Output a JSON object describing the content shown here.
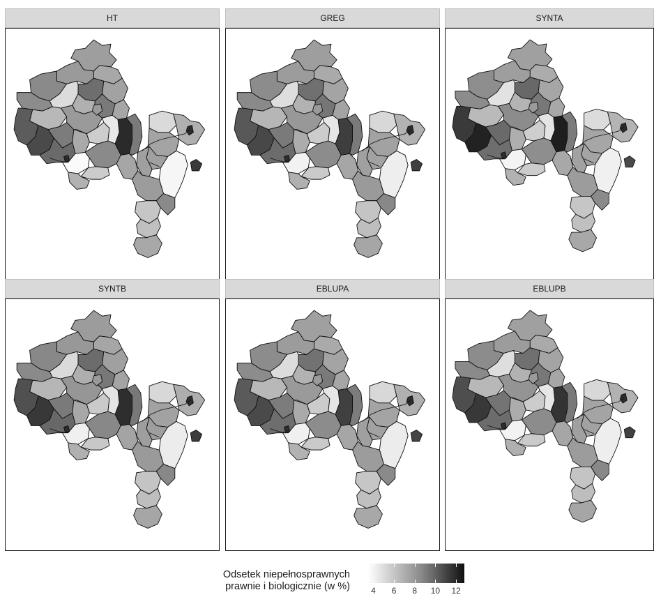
{
  "panels": [
    {
      "title": "HT",
      "shades": [
        "#9e9e9e",
        "#a8a8a8",
        "#9a9a9a",
        "#6e6e6e",
        "#8a8a8a",
        "#a2a2a2",
        "#dcdcdc",
        "#b0b0b0",
        "#7a7a7a",
        "#8c8c8c",
        "#a6a6a6",
        "#b8b8b8",
        "#5c5c5c",
        "#4a4a4a",
        "#7c7c7c",
        "#9a9a9a",
        "#cdcdcd",
        "#e8e8e8",
        "#aaaaaa",
        "#2a2a2a",
        "#7a7a7a",
        "#dadada",
        "#b0b0b0",
        "#a4a4a4",
        "#6a6a6a",
        "#fafafa",
        "#f6f6f6",
        "#a0a0a0",
        "#8a8a8a",
        "#a6a6a6",
        "#a0a0a0",
        "#cccccc",
        "#9c9c9c",
        "#b2b2b2",
        "#c6c6c6",
        "#8a8a8a",
        "#c0c0c0",
        "#a8a8a8",
        "#3a3a3a"
      ]
    },
    {
      "title": "GREG",
      "shades": [
        "#9e9e9e",
        "#aaaaaa",
        "#9c9c9c",
        "#707070",
        "#8c8c8c",
        "#a4a4a4",
        "#dedede",
        "#b2b2b2",
        "#767676",
        "#8a8a8a",
        "#a4a4a4",
        "#b6b6b6",
        "#585858",
        "#484848",
        "#7a7a7a",
        "#989898",
        "#cccccc",
        "#e6e6e6",
        "#acacac",
        "#3e3e3e",
        "#7a7a7a",
        "#d8d8d8",
        "#b2b2b2",
        "#a2a2a2",
        "#6c6c6c",
        "#f2f2f2",
        "#eeeeee",
        "#a2a2a2",
        "#8c8c8c",
        "#a6a6a6",
        "#a0a0a0",
        "#cacaca",
        "#9a9a9a",
        "#b0b0b0",
        "#c4c4c4",
        "#888888",
        "#bebebe",
        "#a6a6a6",
        "#404040"
      ]
    },
    {
      "title": "SYNTA",
      "shades": [
        "#a0a0a0",
        "#acacac",
        "#9e9e9e",
        "#686868",
        "#8e8e8e",
        "#a6a6a6",
        "#e2e2e2",
        "#b4b4b4",
        "#787878",
        "#8c8c8c",
        "#a8a8a8",
        "#bababa",
        "#3a3a3a",
        "#222222",
        "#6a6a6a",
        "#8c8c8c",
        "#cecece",
        "#e4e4e4",
        "#aeaeae",
        "#1e1e1e",
        "#7c7c7c",
        "#dcdcdc",
        "#b4b4b4",
        "#a6a6a6",
        "#6e6e6e",
        "#f4f4f4",
        "#f0f0f0",
        "#a4a4a4",
        "#8e8e8e",
        "#a8a8a8",
        "#a2a2a2",
        "#cccccc",
        "#9c9c9c",
        "#b2b2b2",
        "#c6c6c6",
        "#8a8a8a",
        "#c0c0c0",
        "#a8a8a8",
        "#4a4a4a"
      ]
    },
    {
      "title": "SYNTB",
      "shades": [
        "#9c9c9c",
        "#a6a6a6",
        "#989898",
        "#6c6c6c",
        "#888888",
        "#a0a0a0",
        "#dadada",
        "#aeaeae",
        "#787878",
        "#8a8a8a",
        "#a4a4a4",
        "#b6b6b6",
        "#505050",
        "#383838",
        "#7a7a7a",
        "#969696",
        "#cacaca",
        "#e4e4e4",
        "#a8a8a8",
        "#2e2e2e",
        "#787878",
        "#d8d8d8",
        "#aeaeae",
        "#a2a2a2",
        "#686868",
        "#f0f0f0",
        "#ececec",
        "#9e9e9e",
        "#888888",
        "#a4a4a4",
        "#9e9e9e",
        "#c8c8c8",
        "#9a9a9a",
        "#b0b0b0",
        "#c4c4c4",
        "#888888",
        "#bebebe",
        "#a6a6a6",
        "#3c3c3c"
      ]
    },
    {
      "title": "EBLUPA",
      "shades": [
        "#a0a0a0",
        "#aaaaaa",
        "#9c9c9c",
        "#727272",
        "#8c8c8c",
        "#a4a4a4",
        "#dcdcdc",
        "#b2b2b2",
        "#7a7a7a",
        "#8c8c8c",
        "#a6a6a6",
        "#b8b8b8",
        "#5a5a5a",
        "#4a4a4a",
        "#7c7c7c",
        "#9a9a9a",
        "#cccccc",
        "#e6e6e6",
        "#aaaaaa",
        "#404040",
        "#7c7c7c",
        "#d8d8d8",
        "#b0b0b0",
        "#a4a4a4",
        "#6e6e6e",
        "#f0f0f0",
        "#ececec",
        "#a2a2a2",
        "#8c8c8c",
        "#a6a6a6",
        "#a0a0a0",
        "#cacaca",
        "#9c9c9c",
        "#b2b2b2",
        "#c6c6c6",
        "#8a8a8a",
        "#c0c0c0",
        "#a8a8a8",
        "#444444"
      ]
    },
    {
      "title": "EBLUPB",
      "shades": [
        "#a0a0a0",
        "#aaaaaa",
        "#9c9c9c",
        "#707070",
        "#8c8c8c",
        "#a4a4a4",
        "#dedede",
        "#b2b2b2",
        "#787878",
        "#8a8a8a",
        "#a6a6a6",
        "#b8b8b8",
        "#4e4e4e",
        "#383838",
        "#747474",
        "#949494",
        "#cccccc",
        "#e6e6e6",
        "#acacac",
        "#343434",
        "#7a7a7a",
        "#d8d8d8",
        "#b2b2b2",
        "#a4a4a4",
        "#6c6c6c",
        "#f2f2f2",
        "#eeeeee",
        "#a2a2a2",
        "#8c8c8c",
        "#a6a6a6",
        "#a0a0a0",
        "#cacaca",
        "#9c9c9c",
        "#b0b0b0",
        "#c4c4c4",
        "#888888",
        "#bebebe",
        "#a6a6a6",
        "#424242"
      ]
    }
  ],
  "legend": {
    "title_line1": "Odsetek niepełnosprawnych",
    "title_line2": "prawnie i biologicznie (w %)",
    "ticks": [
      "4",
      "6",
      "8",
      "10",
      "12"
    ],
    "range": [
      3.5,
      12.8
    ]
  }
}
